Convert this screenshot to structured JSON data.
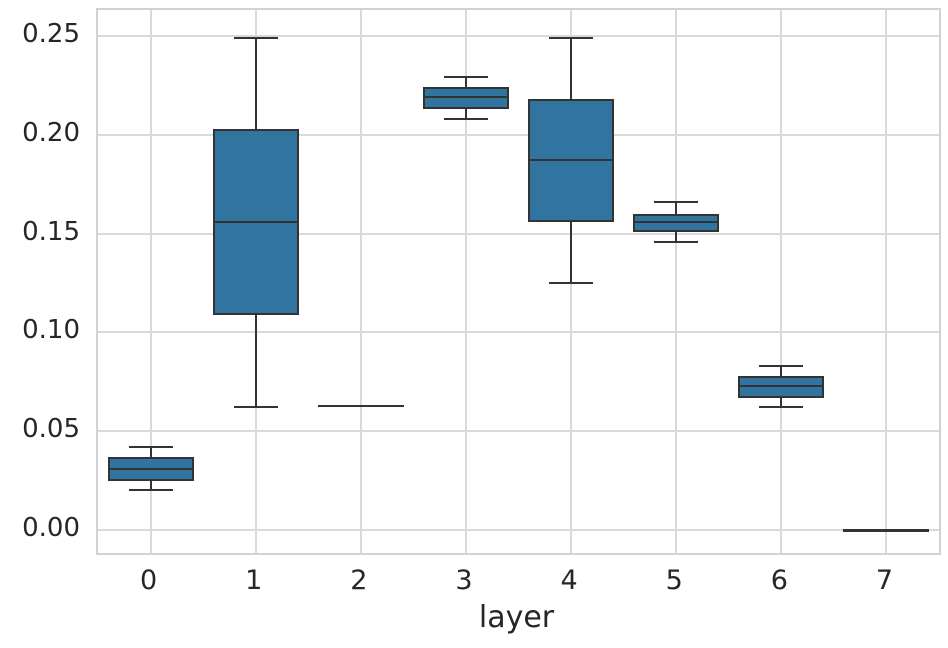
{
  "chart_data": {
    "type": "boxplot",
    "title": "",
    "xlabel": "layer",
    "ylabel": "",
    "categories": [
      "0",
      "1",
      "2",
      "3",
      "4",
      "5",
      "6",
      "7"
    ],
    "y_ticks": [
      0.0,
      0.05,
      0.1,
      0.15,
      0.2,
      0.25
    ],
    "y_tick_labels": [
      "0.00",
      "0.05",
      "0.10",
      "0.15",
      "0.20",
      "0.25"
    ],
    "ylim": [
      -0.012,
      0.263
    ],
    "grid": true,
    "legend": "none",
    "boxes": [
      {
        "category": "0",
        "whisker_low": 0.02,
        "q1": 0.025,
        "median": 0.031,
        "q3": 0.037,
        "whisker_high": 0.042
      },
      {
        "category": "1",
        "whisker_low": 0.062,
        "q1": 0.109,
        "median": 0.156,
        "q3": 0.203,
        "whisker_high": 0.249
      },
      {
        "category": "2",
        "whisker_low": 0.063,
        "q1": 0.063,
        "median": 0.063,
        "q3": 0.063,
        "whisker_high": 0.063
      },
      {
        "category": "3",
        "whisker_low": 0.208,
        "q1": 0.213,
        "median": 0.219,
        "q3": 0.224,
        "whisker_high": 0.229
      },
      {
        "category": "4",
        "whisker_low": 0.125,
        "q1": 0.156,
        "median": 0.187,
        "q3": 0.218,
        "whisker_high": 0.249
      },
      {
        "category": "5",
        "whisker_low": 0.146,
        "q1": 0.151,
        "median": 0.156,
        "q3": 0.16,
        "whisker_high": 0.166
      },
      {
        "category": "6",
        "whisker_low": 0.062,
        "q1": 0.067,
        "median": 0.073,
        "q3": 0.078,
        "whisker_high": 0.083
      },
      {
        "category": "7",
        "whisker_low": 0.0,
        "q1": 0.0,
        "median": 0.0,
        "q3": 0.0,
        "whisker_high": 0.0
      }
    ],
    "colors": {
      "box_fill": "#3274a0",
      "box_edge": "#333333",
      "whisker": "#333333",
      "grid": "#dadada",
      "spine": "#d2d2d2",
      "text": "#262626",
      "background": "#ffffff"
    }
  }
}
